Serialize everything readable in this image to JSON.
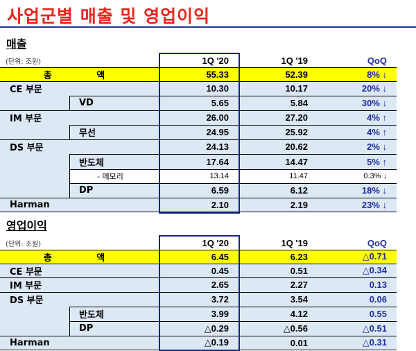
{
  "title": "사업군별 매출 및 영업이익",
  "revenue": {
    "section_label": "매출",
    "unit": "(단위: 조원)",
    "headers": [
      "1Q '20",
      "1Q '19",
      "QoQ"
    ],
    "rows": [
      {
        "label": "총 액",
        "v20": "55.33",
        "v19": "52.39",
        "qoq": "8% ↓"
      },
      {
        "label": "CE 부문",
        "v20": "10.30",
        "v19": "10.17",
        "qoq": "20% ↓"
      },
      {
        "label": "VD",
        "v20": "5.65",
        "v19": "5.84",
        "qoq": "30% ↓"
      },
      {
        "label": "IM 부문",
        "v20": "26.00",
        "v19": "27.20",
        "qoq": "4% ↑"
      },
      {
        "label": "무선",
        "v20": "24.95",
        "v19": "25.92",
        "qoq": "4% ↑"
      },
      {
        "label": "DS 부문",
        "v20": "24.13",
        "v19": "20.62",
        "qoq": "2% ↓"
      },
      {
        "label": "반도체",
        "v20": "17.64",
        "v19": "14.47",
        "qoq": "5% ↑"
      },
      {
        "label": "- 메모리",
        "v20": "13.14",
        "v19": "11.47",
        "qoq": "0.3% ↓"
      },
      {
        "label": "DP",
        "v20": "6.59",
        "v19": "6.12",
        "qoq": "18% ↓"
      },
      {
        "label": "Harman",
        "v20": "2.10",
        "v19": "2.19",
        "qoq": "23% ↓"
      }
    ]
  },
  "op_profit": {
    "section_label": "영업이익",
    "unit": "(단위: 조원)",
    "headers": [
      "1Q '20",
      "1Q '19",
      "QoQ"
    ],
    "rows": [
      {
        "label": "총 액",
        "v20": "6.45",
        "v19": "6.23",
        "qoq": "△0.71"
      },
      {
        "label": "CE 부문",
        "v20": "0.45",
        "v19": "0.51",
        "qoq": "△0.34"
      },
      {
        "label": "IM 부문",
        "v20": "2.65",
        "v19": "2.27",
        "qoq": "0.13"
      },
      {
        "label": "DS 부문",
        "v20": "3.72",
        "v19": "3.54",
        "qoq": "0.06"
      },
      {
        "label": "반도체",
        "v20": "3.99",
        "v19": "4.12",
        "qoq": "0.55"
      },
      {
        "label": "DP",
        "v20": "△0.29",
        "v19": "△0.56",
        "qoq": "△0.51"
      },
      {
        "label": "Harman",
        "v20": "△0.19",
        "v19": "0.01",
        "qoq": "△0.31"
      }
    ]
  }
}
